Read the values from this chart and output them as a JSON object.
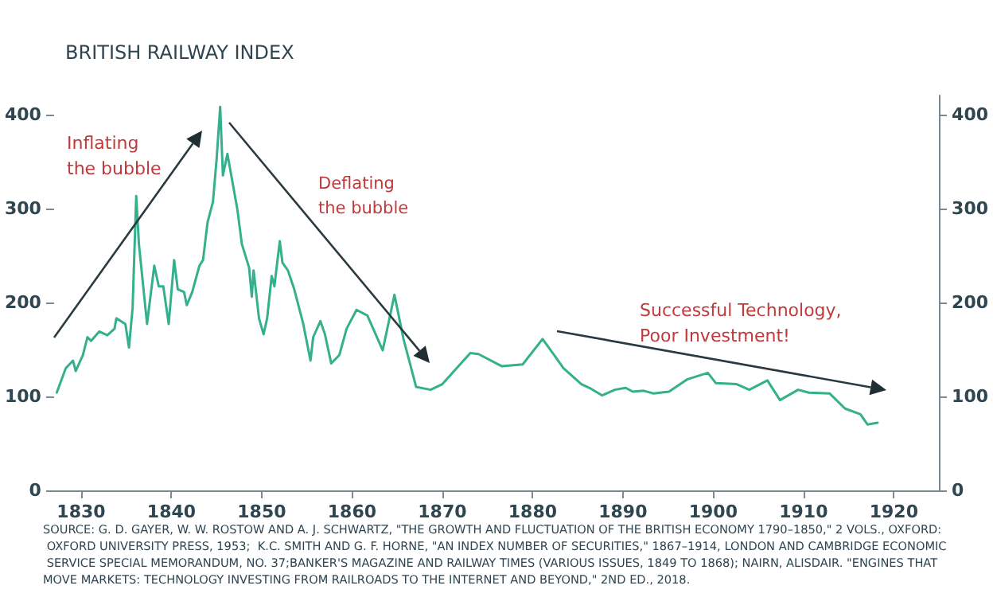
{
  "chart_data": {
    "type": "line",
    "title": "BRITISH RAILWAY INDEX",
    "x": [
      1827.3,
      1828.3,
      1829.1,
      1829.4,
      1830.2,
      1830.7,
      1831.1,
      1832,
      1832.9,
      1833.7,
      1833.9,
      1834.9,
      1835.3,
      1835.7,
      1836.1,
      1836.4,
      1837.3,
      1838.1,
      1838.6,
      1839.1,
      1839.7,
      1840.3,
      1840.7,
      1841.4,
      1841.7,
      1842.3,
      1843.1,
      1843.5,
      1844,
      1844.6,
      1845,
      1845.4,
      1845.7,
      1846.2,
      1847.3,
      1847.8,
      1848.6,
      1848.9,
      1849.1,
      1849.7,
      1850.2,
      1850.6,
      1851.1,
      1851.4,
      1852,
      1852.3,
      1852.9,
      1853.6,
      1854.6,
      1855.4,
      1855.7,
      1856.5,
      1857,
      1857.7,
      1858.6,
      1859.4,
      1860.5,
      1861.7,
      1863.4,
      1864.7,
      1865.7,
      1867.1,
      1868.7,
      1870,
      1873.1,
      1874,
      1876.6,
      1878.9,
      1881.1,
      1882.6,
      1883.4,
      1885.4,
      1886.3,
      1887.7,
      1889.1,
      1890.3,
      1891.1,
      1892.3,
      1893.4,
      1895.1,
      1897.1,
      1899.4,
      1900.3,
      1902.6,
      1904,
      1906,
      1907.4,
      1909.4,
      1910.6,
      1912.9,
      1914.6,
      1916.3,
      1917.1,
      1918.2
    ],
    "series": [
      {
        "color": "#35b08c",
        "values": [
          104,
          130,
          138,
          127,
          144,
          163,
          159,
          169,
          165,
          172,
          183,
          177,
          152,
          194,
          313,
          262,
          177,
          239,
          217,
          217,
          177,
          245,
          214,
          211,
          197,
          211,
          239,
          245,
          285,
          307,
          352,
          408,
          335,
          358,
          299,
          262,
          237,
          206,
          234,
          183,
          166,
          183,
          228,
          217,
          265,
          242,
          234,
          214,
          177,
          138,
          163,
          180,
          166,
          135,
          144,
          172,
          192,
          186,
          149,
          208,
          161,
          110,
          107,
          113,
          146,
          145,
          132,
          134,
          161,
          141,
          130,
          113,
          109,
          101,
          107,
          109,
          105,
          106,
          103,
          105,
          118,
          125,
          114,
          113,
          107,
          117,
          96,
          107,
          104,
          103,
          87,
          81,
          70,
          72
        ]
      }
    ],
    "xlim": [
      1827,
      1925
    ],
    "xticks": [
      1830,
      1840,
      1850,
      1860,
      1870,
      1880,
      1890,
      1900,
      1910,
      1920
    ],
    "ylim": [
      0,
      420
    ],
    "yticks": [
      0,
      100,
      200,
      300,
      400
    ],
    "y2lim": [
      0,
      420
    ],
    "y2ticks": [
      0,
      100,
      200,
      300,
      400
    ],
    "grid": false,
    "marker": "none",
    "line_style": "solid",
    "annotations": [
      "Inflating\nthe bubble",
      "Deflating\nthe bubble",
      "Successful Technology,\nPoor Investment!",
      "SOURCE: G. D. GAYER, W. W. ROSTOW AND A. J. SCHWARTZ, \"THE GROWTH AND FLUCTUATION OF THE BRITISH ECONOMY 1790–1850,\" 2 VOLS., OXFORD: OXFORD UNIVERSITY PRESS, 1953;  K.C. SMITH AND G. F. HORNE, \"AN INDEX NUMBER OF SECURITIES,\" 1867–1914, LONDON AND CAMBRIDGE ECONOMIC SERVICE SPECIAL MEMORANDUM, NO. 37;BANKER'S MAGAZINE AND RAILWAY TIMES (VARIOUS ISSUES, 1849 TO 1868); NAIRN, ALISDAIR. \"ENGINES THAT MOVE MARKETS: TECHNOLOGY INVESTING FROM RAILROADS TO THE INTERNET AND BEYOND,\" 2ND ED., 2018."
    ]
  }
}
